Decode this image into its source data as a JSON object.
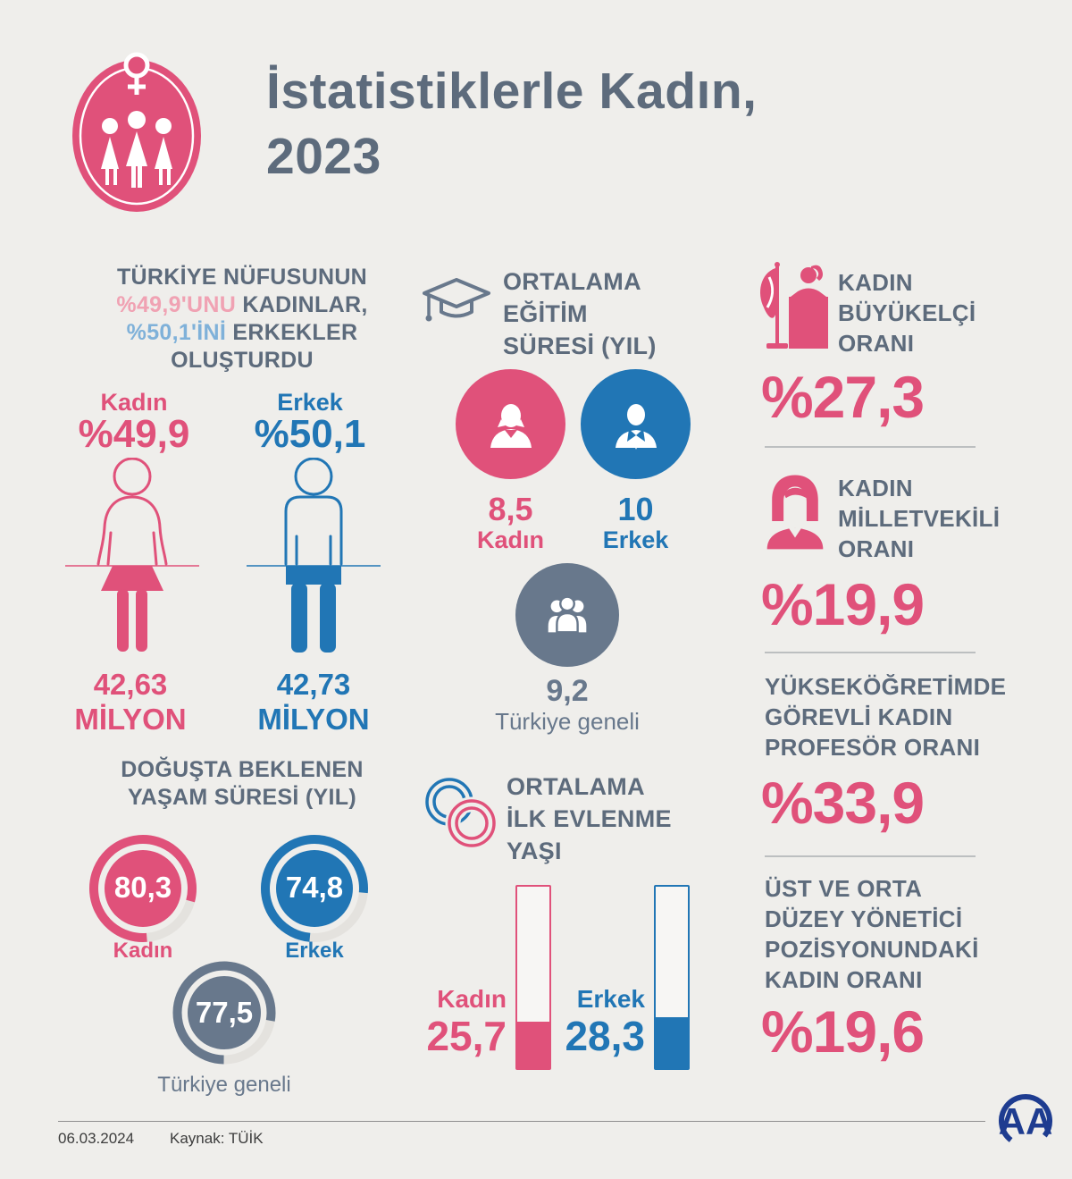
{
  "header": {
    "title_line1": "İstatistiklerle Kadın,",
    "title_line2": "2023"
  },
  "population": {
    "heading": {
      "l1": "TÜRKİYE NÜFUSUNUN",
      "l2_pct": "%49,9'UNU",
      "l2_rest": " KADINLAR,",
      "l3_pct": "%50,1'İNİ",
      "l3_rest": " ERKEKLER",
      "l4": "OLUŞTURDU"
    },
    "female": {
      "label": "Kadın",
      "pct": "%49,9",
      "count": "42,63\nMİLYON"
    },
    "male": {
      "label": "Erkek",
      "pct": "%50,1",
      "count": "42,73\nMİLYON"
    }
  },
  "life_expectancy": {
    "title": "DOĞUŞTA BEKLENEN\nYAŞAM SÜRESİ (YIL)",
    "female": {
      "value": "80,3",
      "label": "Kadın",
      "pct": 80.3
    },
    "male": {
      "value": "74,8",
      "label": "Erkek",
      "pct": 74.8
    },
    "overall": {
      "value": "77,5",
      "label": "Türkiye geneli",
      "pct": 77.5
    }
  },
  "education": {
    "title": "ORTALAMA\nEĞİTİM\nSÜRESİ (YIL)",
    "female": {
      "value": "8,5",
      "label": "Kadın"
    },
    "male": {
      "value": "10",
      "label": "Erkek"
    },
    "overall": {
      "value": "9,2",
      "label": "Türkiye geneli"
    }
  },
  "marriage": {
    "title": "ORTALAMA\nİLK EVLENME\nYAŞI",
    "female": {
      "label": "Kadın",
      "value": "25,7",
      "age_num": 25.7
    },
    "male": {
      "label": "Erkek",
      "value": "28,3",
      "age_num": 28.3
    }
  },
  "stats": [
    {
      "title": "KADIN\nBÜYÜKELÇİ\nORANI",
      "value": "%27,3",
      "icon": "ambassador-podium-icon"
    },
    {
      "title": "KADIN\nMİLLETVEKİLİ\nORANI",
      "value": "%19,9",
      "icon": "woman-icon"
    },
    {
      "title": "YÜKSEKÖĞRETİMDE\nGÖREVLİ KADIN\nPROFESÖR ORANI",
      "value": "%33,9",
      "icon": ""
    },
    {
      "title": "ÜST VE ORTA\nDÜZEY YÖNETİCİ\nPOZİSYONUNDAKİ\nKADIN ORANI",
      "value": "%19,6",
      "icon": ""
    }
  ],
  "footer": {
    "date": "06.03.2024",
    "source": "Kaynak: TÜİK",
    "agency": "AA"
  },
  "icons": {
    "logo": "women-statistics-logo",
    "education": "graduation-cap-icon",
    "marriage": "wedding-rings-icon",
    "edu_female": "businesswoman-icon",
    "edu_male": "businessman-icon",
    "edu_overall": "people-group-icon"
  },
  "colors": {
    "pink": "#e0517a",
    "light_pink": "#f0a2b3",
    "blue": "#2176b5",
    "light_blue": "#7fb1d9",
    "slate_heading": "#5d6b7c",
    "slate_gray": "#68788c",
    "background": "#efeeeb",
    "navy_logo": "#1e3c90"
  },
  "chart_data": [
    {
      "type": "pie",
      "title": "Türkiye nüfusu cinsiyet dağılımı",
      "categories": [
        "Kadın",
        "Erkek"
      ],
      "values": [
        49.9,
        50.1
      ],
      "counts_million": [
        42.63,
        42.73
      ]
    },
    {
      "type": "bar",
      "title": "Ortalama eğitim süresi (yıl)",
      "categories": [
        "Kadın",
        "Erkek",
        "Türkiye geneli"
      ],
      "values": [
        8.5,
        10,
        9.2
      ]
    },
    {
      "type": "bar",
      "title": "Doğuşta beklenen yaşam süresi (yıl)",
      "categories": [
        "Kadın",
        "Erkek",
        "Türkiye geneli"
      ],
      "values": [
        80.3,
        74.8,
        77.5
      ],
      "ylim": [
        0,
        100
      ]
    },
    {
      "type": "bar",
      "title": "Ortalama ilk evlenme yaşı",
      "categories": [
        "Kadın",
        "Erkek"
      ],
      "values": [
        25.7,
        28.3
      ],
      "ylim": [
        0,
        100
      ]
    },
    {
      "type": "table",
      "title": "Kadın oranları (%)",
      "categories": [
        "Kadın büyükelçi oranı",
        "Kadın milletvekili oranı",
        "Yükseköğretimde görevli kadın profesör oranı",
        "Üst ve orta düzey yönetici pozisyonundaki kadın oranı"
      ],
      "values": [
        27.3,
        19.9,
        33.9,
        19.6
      ]
    }
  ]
}
